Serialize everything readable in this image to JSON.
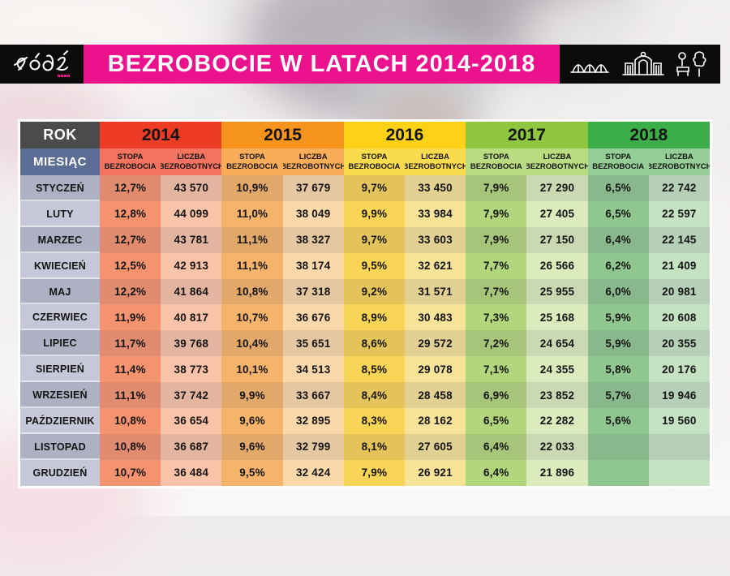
{
  "logo": {
    "city": "Łódź"
  },
  "banner": {
    "title": "BEZROBOCIE W LATACH 2014-2018",
    "bg": "#EC118D"
  },
  "landmark_icons": [
    "arched-viaduct-icon",
    "city-gate-icon",
    "park-icon"
  ],
  "table": {
    "rok_label": "ROK",
    "miesiac_label": "MIESIĄC",
    "subheaders": [
      "STOPA BEZROBOCIA",
      "LICZBA BEZROBOTNYCH"
    ],
    "month_colors": {
      "odd": "#AEB0C3",
      "even": "#C6C7D8"
    },
    "row_odd_overlay": "rgba(85,85,110,0.13)",
    "years": [
      {
        "label": "2014",
        "header": "#EE3B25",
        "sub": "#F3735F",
        "stopa": "#F6936F",
        "liczba": "#F8C3A8"
      },
      {
        "label": "2015",
        "header": "#F7941D",
        "sub": "#FAAD58",
        "stopa": "#F6B46A",
        "liczba": "#FAD8A9"
      },
      {
        "label": "2016",
        "header": "#FCD116",
        "sub": "#FBDB4E",
        "stopa": "#F9D557",
        "liczba": "#F6E398"
      },
      {
        "label": "2017",
        "header": "#8EC63F",
        "sub": "#BADC80",
        "stopa": "#B2D67C",
        "liczba": "#DCEBBE"
      },
      {
        "label": "2018",
        "header": "#3BAE49",
        "sub": "#95CD96",
        "stopa": "#90C791",
        "liczba": "#C5E2C2"
      }
    ],
    "rows": [
      {
        "month": "STYCZEŃ",
        "cells": [
          "12,7%",
          "43 570",
          "10,9%",
          "37 679",
          "9,7%",
          "33 450",
          "7,9%",
          "27 290",
          "6,5%",
          "22 742"
        ]
      },
      {
        "month": "LUTY",
        "cells": [
          "12,8%",
          "44 099",
          "11,0%",
          "38 049",
          "9,9%",
          "33 984",
          "7,9%",
          "27 405",
          "6,5%",
          "22 597"
        ]
      },
      {
        "month": "MARZEC",
        "cells": [
          "12,7%",
          "43 781",
          "11,1%",
          "38 327",
          "9,7%",
          "33 603",
          "7,9%",
          "27 150",
          "6,4%",
          "22 145"
        ]
      },
      {
        "month": "KWIECIEŃ",
        "cells": [
          "12,5%",
          "42 913",
          "11,1%",
          "38 174",
          "9,5%",
          "32 621",
          "7,7%",
          "26 566",
          "6,2%",
          "21 409"
        ]
      },
      {
        "month": "MAJ",
        "cells": [
          "12,2%",
          "41 864",
          "10,8%",
          "37 318",
          "9,2%",
          "31 571",
          "7,7%",
          "25 955",
          "6,0%",
          "20 981"
        ]
      },
      {
        "month": "CZERWIEC",
        "cells": [
          "11,9%",
          "40 817",
          "10,7%",
          "36 676",
          "8,9%",
          "30 483",
          "7,3%",
          "25 168",
          "5,9%",
          "20 608"
        ]
      },
      {
        "month": "LIPIEC",
        "cells": [
          "11,7%",
          "39 768",
          "10,4%",
          "35 651",
          "8,6%",
          "29 572",
          "7,2%",
          "24 654",
          "5,9%",
          "20 355"
        ]
      },
      {
        "month": "SIERPIEŃ",
        "cells": [
          "11,4%",
          "38 773",
          "10,1%",
          "34 513",
          "8,5%",
          "29 078",
          "7,1%",
          "24 355",
          "5,8%",
          "20 176"
        ]
      },
      {
        "month": "WRZESIEŃ",
        "cells": [
          "11,1%",
          "37 742",
          "9,9%",
          "33 667",
          "8,4%",
          "28 458",
          "6,9%",
          "23 852",
          "5,7%",
          "19 946"
        ]
      },
      {
        "month": "PAŹDZIERNIK",
        "cells": [
          "10,8%",
          "36 654",
          "9,6%",
          "32 895",
          "8,3%",
          "28 162",
          "6,5%",
          "22 282",
          "5,6%",
          "19 560"
        ]
      },
      {
        "month": "LISTOPAD",
        "cells": [
          "10,8%",
          "36 687",
          "9,6%",
          "32 799",
          "8,1%",
          "27 605",
          "6,4%",
          "22 033",
          "",
          ""
        ]
      },
      {
        "month": "GRUDZIEŃ",
        "cells": [
          "10,7%",
          "36 484",
          "9,5%",
          "32 424",
          "7,9%",
          "26 921",
          "6,4%",
          "21 896",
          "",
          ""
        ]
      }
    ]
  },
  "chart_data": {
    "type": "table",
    "title": "BEZROBOCIE W LATACH 2014-2018",
    "row_header": "MIESIĄC",
    "col_header": "ROK",
    "columns_per_year": [
      "STOPA BEZROBOCIA (%)",
      "LICZBA BEZROBOTNYCH"
    ],
    "categories": [
      "STYCZEŃ",
      "LUTY",
      "MARZEC",
      "KWIECIEŃ",
      "MAJ",
      "CZERWIEC",
      "LIPIEC",
      "SIERPIEŃ",
      "WRZESIEŃ",
      "PAŹDZIERNIK",
      "LISTOPAD",
      "GRUDZIEŃ"
    ],
    "series": [
      {
        "name": "2014",
        "stopa_pct": [
          12.7,
          12.8,
          12.7,
          12.5,
          12.2,
          11.9,
          11.7,
          11.4,
          11.1,
          10.8,
          10.8,
          10.7
        ],
        "liczba": [
          43570,
          44099,
          43781,
          42913,
          41864,
          40817,
          39768,
          38773,
          37742,
          36654,
          36687,
          36484
        ]
      },
      {
        "name": "2015",
        "stopa_pct": [
          10.9,
          11.0,
          11.1,
          11.1,
          10.8,
          10.7,
          10.4,
          10.1,
          9.9,
          9.6,
          9.6,
          9.5
        ],
        "liczba": [
          37679,
          38049,
          38327,
          38174,
          37318,
          36676,
          35651,
          34513,
          33667,
          32895,
          32799,
          32424
        ]
      },
      {
        "name": "2016",
        "stopa_pct": [
          9.7,
          9.9,
          9.7,
          9.5,
          9.2,
          8.9,
          8.6,
          8.5,
          8.4,
          8.3,
          8.1,
          7.9
        ],
        "liczba": [
          33450,
          33984,
          33603,
          32621,
          31571,
          30483,
          29572,
          29078,
          28458,
          28162,
          27605,
          26921
        ]
      },
      {
        "name": "2017",
        "stopa_pct": [
          7.9,
          7.9,
          7.9,
          7.7,
          7.7,
          7.3,
          7.2,
          7.1,
          6.9,
          6.5,
          6.4,
          6.4
        ],
        "liczba": [
          27290,
          27405,
          27150,
          26566,
          25955,
          25168,
          24654,
          24355,
          23852,
          22282,
          22033,
          21896
        ]
      },
      {
        "name": "2018",
        "stopa_pct": [
          6.5,
          6.5,
          6.4,
          6.2,
          6.0,
          5.9,
          5.9,
          5.8,
          5.7,
          5.6,
          null,
          null
        ],
        "liczba": [
          22742,
          22597,
          22145,
          21409,
          20981,
          20608,
          20355,
          20176,
          19946,
          19560,
          null,
          null
        ]
      }
    ]
  }
}
